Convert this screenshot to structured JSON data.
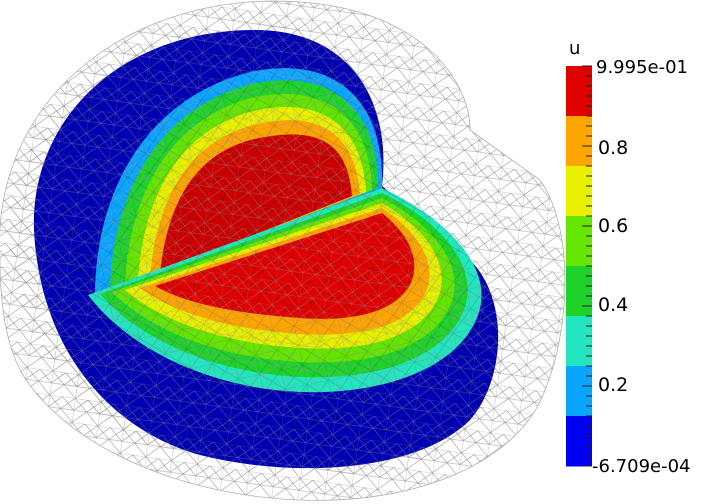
{
  "colorbar": {
    "title": "u",
    "max_label": "9.995e-01",
    "min_label": "-6.709e-04",
    "tick_labels": [
      "0.8",
      "0.6",
      "0.4",
      "0.2"
    ],
    "bands": [
      {
        "color": "#e00000"
      },
      {
        "color": "#ffa500"
      },
      {
        "color": "#e8f000"
      },
      {
        "color": "#64e600"
      },
      {
        "color": "#1ed22a"
      },
      {
        "color": "#22e6c0"
      },
      {
        "color": "#0aa5ff"
      },
      {
        "color": "#0000f0"
      }
    ]
  }
}
